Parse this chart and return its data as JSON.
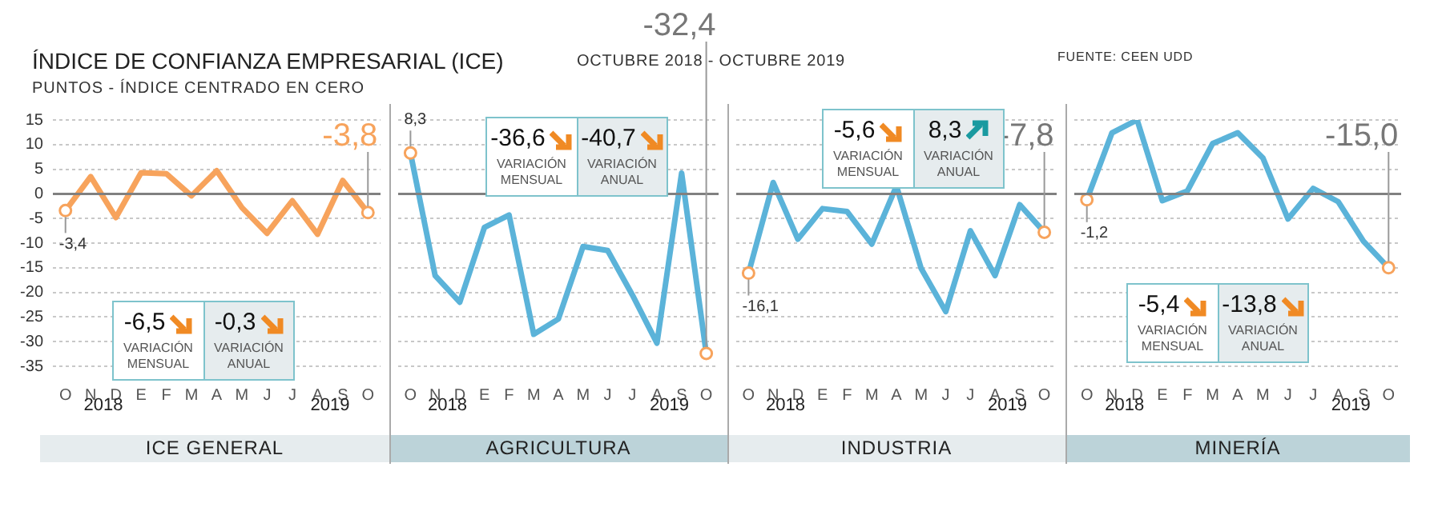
{
  "chart_data": [
    {
      "type": "line",
      "title": "ÍNDICE DE CONFIANZA EMPRESARIAL (ICE)",
      "subtitle": "PUNTOS - ÍNDICE CENTRADO EN CERO",
      "xlabel": "ICE GENERAL",
      "categories": [
        "O",
        "N",
        "D",
        "E",
        "F",
        "M",
        "A",
        "M",
        "J",
        "J",
        "A",
        "S",
        "O"
      ],
      "series": [
        {
          "color": "#f7a35c",
          "values": [
            -3.4,
            3.5,
            -4.8,
            4.3,
            4.1,
            -0.4,
            4.7,
            -2.8,
            -8.0,
            -1.4,
            -8.2,
            2.7,
            -3.8
          ],
          "value_labels": [
            "-3,4",
            null,
            null,
            null,
            null,
            null,
            null,
            null,
            null,
            null,
            null,
            null,
            "-3,8"
          ]
        }
      ],
      "ylim": [
        -35,
        15
      ],
      "yticks": [
        -35,
        -30,
        -25,
        -20,
        -15,
        -10,
        -5,
        0,
        5,
        10,
        15
      ],
      "grid": "y",
      "ref_lines": [
        {
          "axis": "y",
          "value": 0,
          "color": "#808080"
        }
      ],
      "annotations": [
        "-6,5",
        "VARIACIÓN MENSUAL",
        "-0,3",
        "VARIACIÓN ANUAL",
        "OCTUBRE 2018 - OCTUBRE 2019",
        "FUENTE: CEEN UDD",
        "2018",
        "2019"
      ]
    },
    {
      "type": "line",
      "xlabel": "AGRICULTURA",
      "tick_labels": "x",
      "categories": [
        "O",
        "N",
        "D",
        "E",
        "F",
        "M",
        "A",
        "M",
        "J",
        "J",
        "A",
        "S",
        "O"
      ],
      "series": [
        {
          "color": "#5bb3d9",
          "values": [
            8.3,
            -16.6,
            -22.0,
            -6.8,
            -4.3,
            -28.5,
            -25.4,
            -10.7,
            -11.5,
            -20.5,
            -30.3,
            4.2,
            -32.4
          ],
          "value_labels": [
            "8,3",
            null,
            null,
            null,
            null,
            null,
            null,
            null,
            null,
            null,
            null,
            null,
            "-32,4"
          ]
        }
      ],
      "ylim": [
        -35,
        15
      ],
      "yticks": [
        -35,
        -30,
        -25,
        -20,
        -15,
        -10,
        -5,
        0,
        5,
        10,
        15
      ],
      "grid": "y",
      "ref_lines": [
        {
          "axis": "y",
          "value": 0,
          "color": "#808080"
        }
      ],
      "annotations": [
        "-36,6",
        "VARIACIÓN MENSUAL",
        "-40,7",
        "VARIACIÓN ANUAL",
        "2018",
        "2019"
      ]
    },
    {
      "type": "line",
      "xlabel": "INDUSTRIA",
      "tick_labels": "x",
      "categories": [
        "O",
        "N",
        "D",
        "E",
        "F",
        "M",
        "A",
        "M",
        "J",
        "J",
        "A",
        "S",
        "O"
      ],
      "series": [
        {
          "color": "#5bb3d9",
          "values": [
            -16.1,
            2.3,
            -9.2,
            -3.0,
            -3.6,
            -10.2,
            1.6,
            -15.1,
            -23.9,
            -7.5,
            -16.6,
            -2.2,
            -7.8
          ],
          "value_labels": [
            "-16,1",
            null,
            null,
            null,
            null,
            null,
            null,
            null,
            null,
            null,
            null,
            null,
            "-7,8"
          ]
        }
      ],
      "ylim": [
        -35,
        15
      ],
      "yticks": [
        -35,
        -30,
        -25,
        -20,
        -15,
        -10,
        -5,
        0,
        5,
        10,
        15
      ],
      "grid": "y",
      "ref_lines": [
        {
          "axis": "y",
          "value": 0,
          "color": "#808080"
        }
      ],
      "annotations": [
        "-5,6",
        "VARIACIÓN MENSUAL",
        "8,3",
        "VARIACIÓN ANUAL",
        "2018",
        "2019"
      ]
    },
    {
      "type": "line",
      "xlabel": "MINERÍA",
      "tick_labels": "x",
      "categories": [
        "O",
        "N",
        "D",
        "E",
        "F",
        "M",
        "A",
        "M",
        "J",
        "J",
        "A",
        "S",
        "O"
      ],
      "series": [
        {
          "color": "#5bb3d9",
          "values": [
            -1.2,
            12.4,
            15.0,
            -1.4,
            0.6,
            10.2,
            12.4,
            7.3,
            -5.1,
            1.1,
            -1.6,
            -9.6,
            -15.0
          ],
          "value_labels": [
            "-1,2",
            null,
            null,
            null,
            null,
            null,
            null,
            null,
            null,
            null,
            null,
            null,
            "-15,0"
          ]
        }
      ],
      "ylim": [
        -35,
        15
      ],
      "yticks": [
        -35,
        -30,
        -25,
        -20,
        -15,
        -10,
        -5,
        0,
        5,
        10,
        15
      ],
      "grid": "y",
      "ref_lines": [
        {
          "axis": "y",
          "value": 0,
          "color": "#808080"
        }
      ],
      "annotations": [
        "-5,4",
        "VARIACIÓN MENSUAL",
        "-13,8",
        "VARIACIÓN ANUAL",
        "2018",
        "2019"
      ]
    }
  ]
}
